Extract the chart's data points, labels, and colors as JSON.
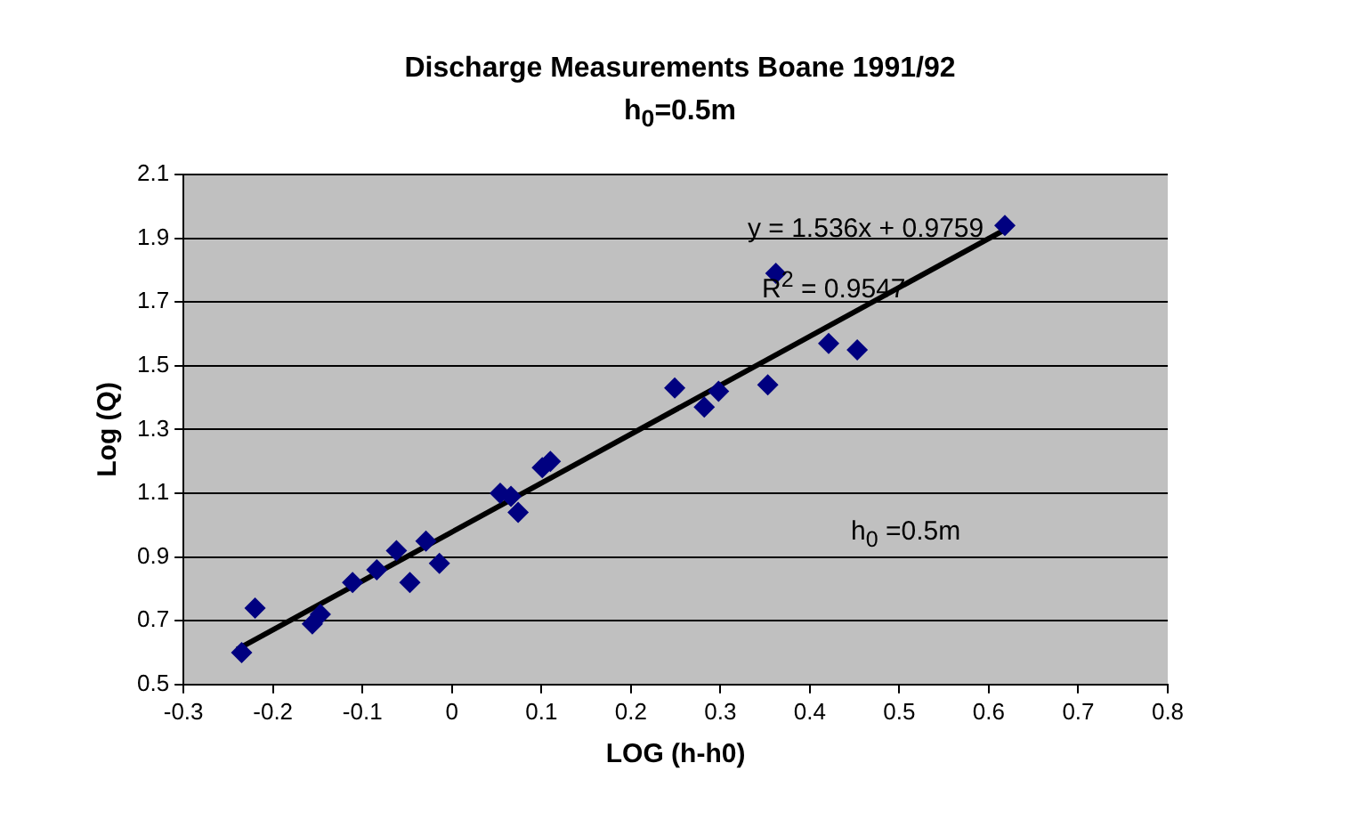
{
  "chart_data": {
    "type": "scatter",
    "title": "Discharge Measurements Boane 1991/92",
    "subtitle": "h$_{0}$=0.5m",
    "xlabel": "LOG (h-h0)",
    "ylabel": "Log (Q)",
    "annotations": [
      "y = 1.536x + 0.9759",
      "R$^{2}$ = 0.9547",
      "h$_{0}$ =0.5m"
    ],
    "series": [
      {
        "marker": "diamond",
        "color": "#000080",
        "x": [
          -0.235,
          -0.22,
          -0.156,
          -0.147,
          -0.111,
          -0.084,
          -0.062,
          -0.047,
          -0.029,
          -0.014,
          0.054,
          0.066,
          0.074,
          0.101,
          0.11,
          0.249,
          0.282,
          0.298,
          0.353,
          0.362,
          0.421,
          0.453,
          0.618
        ],
        "values": [
          0.6,
          0.74,
          0.69,
          0.72,
          0.82,
          0.86,
          0.92,
          0.82,
          0.95,
          0.88,
          1.1,
          1.09,
          1.04,
          1.18,
          1.2,
          1.43,
          1.37,
          1.42,
          1.44,
          1.79,
          1.57,
          1.55,
          1.94
        ]
      },
      {
        "type": "line",
        "marker": "none",
        "color": "#000000",
        "x": [
          -0.24,
          0.62
        ],
        "values": [
          0.61,
          1.93
        ]
      }
    ],
    "xlim": [
      -0.3,
      0.8
    ],
    "xticks": [
      -0.3,
      -0.2,
      -0.1,
      0,
      0.1,
      0.2,
      0.3,
      0.4,
      0.5,
      0.6,
      0.7,
      0.8
    ],
    "ylim": [
      0.5,
      2.1
    ],
    "yticks": [
      0.5,
      0.7,
      0.9,
      1.1,
      1.3,
      1.5,
      1.7,
      1.9,
      2.1
    ],
    "grid": "y",
    "legend": false
  }
}
